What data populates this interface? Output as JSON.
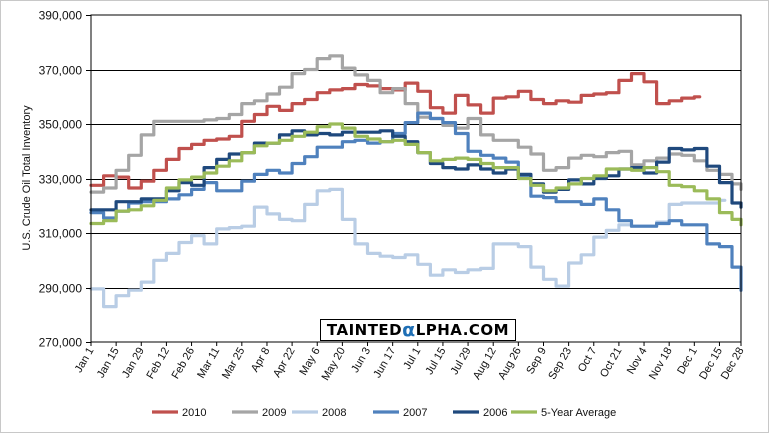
{
  "chart_data": {
    "type": "line",
    "title": "",
    "xlabel": "",
    "ylabel": "U.S. Crude Oil Total Inventory",
    "ylim": [
      270000,
      390000
    ],
    "yticks": [
      270000,
      290000,
      310000,
      330000,
      350000,
      370000,
      390000
    ],
    "ytick_labels": [
      "270,000",
      "290,000",
      "310,000",
      "330,000",
      "350,000",
      "370,000",
      "390,000"
    ],
    "xticks": [
      1,
      15,
      29,
      43,
      57,
      71,
      85,
      99,
      113,
      127,
      141,
      155,
      169,
      183,
      197,
      211,
      225,
      239,
      253,
      267,
      281,
      295,
      309,
      323,
      337,
      351,
      363
    ],
    "xtick_labels": [
      "Jan 1",
      "Jan 15",
      "Jan 29",
      "Feb 12",
      "Feb 26",
      "Mar 11",
      "Mar 25",
      "Apr 8",
      "Apr 22",
      "May 6",
      "May 20",
      "Jun 3",
      "Jun 17",
      "Jul 1",
      "Jul 15",
      "Jul 29",
      "Aug 12",
      "Aug 26",
      "Sep 9",
      "Sep 23",
      "Oct 7",
      "Oct 21",
      "Nov 4",
      "Nov 18",
      "Dec 1",
      "Dec 15",
      "Dec 28"
    ],
    "xlim": [
      1,
      363
    ],
    "grid": "horizontal",
    "legend_position": "bottom",
    "series": [
      {
        "name": "2010",
        "color": "#c0504d",
        "x": [
          1,
          8,
          15,
          22,
          29,
          36,
          43,
          50,
          57,
          64,
          71,
          78,
          85,
          92,
          99,
          106,
          113,
          120,
          127,
          134,
          141,
          148,
          155,
          162,
          169,
          176,
          183,
          190,
          197,
          204,
          211,
          218,
          225,
          232,
          239,
          246,
          253,
          260,
          267,
          274,
          281,
          288,
          295,
          302,
          309,
          316,
          323,
          330,
          337
        ],
        "values": [
          327500,
          331000,
          330500,
          326500,
          329000,
          333000,
          337000,
          341000,
          342500,
          344000,
          344500,
          345500,
          351000,
          353500,
          356500,
          355000,
          357500,
          359000,
          361500,
          362500,
          363000,
          364500,
          364000,
          363000,
          362500,
          365000,
          362000,
          356000,
          354000,
          360500,
          357000,
          354000,
          359500,
          360000,
          362000,
          359000,
          357500,
          358500,
          358000,
          360500,
          361000,
          361500,
          366000,
          368500,
          365500,
          357500,
          358500,
          359500,
          360000
        ]
      },
      {
        "name": "2009",
        "color": "#a5a5a5",
        "x": [
          1,
          8,
          15,
          22,
          29,
          36,
          43,
          50,
          57,
          64,
          71,
          78,
          85,
          92,
          99,
          106,
          113,
          120,
          127,
          134,
          141,
          148,
          155,
          162,
          169,
          176,
          183,
          190,
          197,
          204,
          211,
          218,
          225,
          232,
          239,
          246,
          253,
          260,
          267,
          274,
          281,
          288,
          295,
          302,
          309,
          316,
          323,
          330,
          337,
          344,
          351,
          358,
          363
        ],
        "values": [
          325000,
          326500,
          333000,
          338500,
          346000,
          351000,
          351000,
          351000,
          351000,
          351500,
          352000,
          353500,
          357500,
          358500,
          361000,
          363500,
          368500,
          370000,
          374000,
          375000,
          370500,
          368000,
          366000,
          361500,
          363000,
          357500,
          352500,
          352000,
          349500,
          348500,
          352000,
          346000,
          344000,
          344000,
          341500,
          339000,
          333000,
          334000,
          337500,
          338500,
          338000,
          339500,
          340000,
          335000,
          336500,
          337500,
          339000,
          338500,
          336500,
          333000,
          331500,
          328000,
          326000
        ]
      },
      {
        "name": "2008",
        "color": "#b9cde5",
        "x": [
          1,
          8,
          15,
          22,
          29,
          36,
          43,
          50,
          57,
          64,
          71,
          78,
          85,
          92,
          99,
          106,
          113,
          120,
          127,
          134,
          141,
          148,
          155,
          162,
          169,
          176,
          183,
          190,
          197,
          204,
          211,
          218,
          225,
          232,
          239,
          246,
          253,
          260,
          267,
          274,
          281,
          288,
          295,
          302,
          309,
          316,
          323,
          330,
          337,
          344,
          351
        ],
        "values": [
          289500,
          283000,
          287000,
          289000,
          292000,
          300000,
          302500,
          306500,
          309000,
          306000,
          311500,
          312000,
          312500,
          319500,
          317000,
          315000,
          314500,
          320500,
          325500,
          326000,
          315000,
          306000,
          302500,
          301500,
          301000,
          302000,
          298500,
          294500,
          296500,
          295500,
          296500,
          297000,
          306000,
          306000,
          305000,
          297500,
          293000,
          290500,
          299000,
          302000,
          308500,
          311000,
          313000,
          312500,
          312500,
          314000,
          320500,
          321000,
          321000,
          321000,
          322000
        ]
      },
      {
        "name": "2007",
        "color": "#4f81bd",
        "x": [
          1,
          8,
          15,
          22,
          29,
          36,
          43,
          50,
          57,
          64,
          71,
          78,
          85,
          92,
          99,
          106,
          113,
          120,
          127,
          134,
          141,
          148,
          155,
          162,
          169,
          176,
          183,
          190,
          197,
          204,
          211,
          218,
          225,
          232,
          239,
          246,
          253,
          260,
          267,
          274,
          281,
          288,
          295,
          302,
          309,
          316,
          323,
          330,
          337,
          344,
          351,
          358,
          363
        ],
        "values": [
          317500,
          315500,
          318000,
          321000,
          321500,
          321500,
          322500,
          324000,
          326000,
          328500,
          325500,
          325500,
          329000,
          331500,
          333000,
          332000,
          335500,
          338000,
          341500,
          341500,
          343500,
          344000,
          343000,
          343500,
          346500,
          350500,
          354000,
          352000,
          350500,
          346500,
          340000,
          338500,
          337500,
          336000,
          330500,
          323500,
          323000,
          321500,
          321500,
          320500,
          322500,
          318500,
          314500,
          312500,
          312500,
          313500,
          314500,
          313000,
          313000,
          306000,
          305000,
          297500,
          289000
        ]
      },
      {
        "name": "2006",
        "color": "#1f497d",
        "x": [
          1,
          8,
          15,
          22,
          29,
          36,
          43,
          50,
          57,
          64,
          71,
          78,
          85,
          92,
          99,
          106,
          113,
          120,
          127,
          134,
          141,
          148,
          155,
          162,
          169,
          176,
          183,
          190,
          197,
          204,
          211,
          218,
          225,
          232,
          239,
          246,
          253,
          260,
          267,
          274,
          281,
          288,
          295,
          302,
          309,
          316,
          323,
          330,
          337,
          344,
          351,
          358,
          363
        ],
        "values": [
          318500,
          318500,
          321500,
          321500,
          322500,
          322500,
          325500,
          328500,
          327500,
          334000,
          337000,
          339000,
          339500,
          343000,
          343000,
          346000,
          347500,
          346000,
          346500,
          346000,
          347000,
          347000,
          347000,
          347500,
          345500,
          343500,
          339500,
          335500,
          334000,
          333500,
          335000,
          333500,
          332000,
          333500,
          331500,
          328000,
          325000,
          326000,
          329500,
          328000,
          330000,
          331000,
          333500,
          334000,
          332000,
          336000,
          341000,
          340500,
          341000,
          334500,
          328500,
          321000,
          319500
        ]
      },
      {
        "name": "5-Year Average",
        "color": "#9bbb59",
        "x": [
          1,
          8,
          15,
          22,
          29,
          36,
          43,
          50,
          57,
          64,
          71,
          78,
          85,
          92,
          99,
          106,
          113,
          120,
          127,
          134,
          141,
          148,
          155,
          162,
          169,
          176,
          183,
          190,
          197,
          204,
          211,
          218,
          225,
          232,
          239,
          246,
          253,
          260,
          267,
          274,
          281,
          288,
          295,
          302,
          309,
          316,
          323,
          330,
          337,
          344,
          351,
          358,
          363
        ],
        "values": [
          313500,
          314500,
          318000,
          318500,
          320000,
          322000,
          326500,
          329500,
          330500,
          332000,
          334500,
          336500,
          339500,
          342000,
          343000,
          344000,
          345500,
          347000,
          349000,
          350000,
          348500,
          345500,
          344500,
          343500,
          344000,
          342500,
          339500,
          336500,
          337000,
          337500,
          337000,
          335500,
          334000,
          334000,
          330000,
          327500,
          325500,
          326500,
          328000,
          330000,
          331000,
          333500,
          333500,
          333000,
          334000,
          332500,
          327500,
          327000,
          325500,
          322500,
          317500,
          315000,
          313000
        ]
      }
    ]
  },
  "watermark": {
    "text_before": "TAINTED",
    "alpha": "α",
    "text_after": "LPHA.COM"
  }
}
